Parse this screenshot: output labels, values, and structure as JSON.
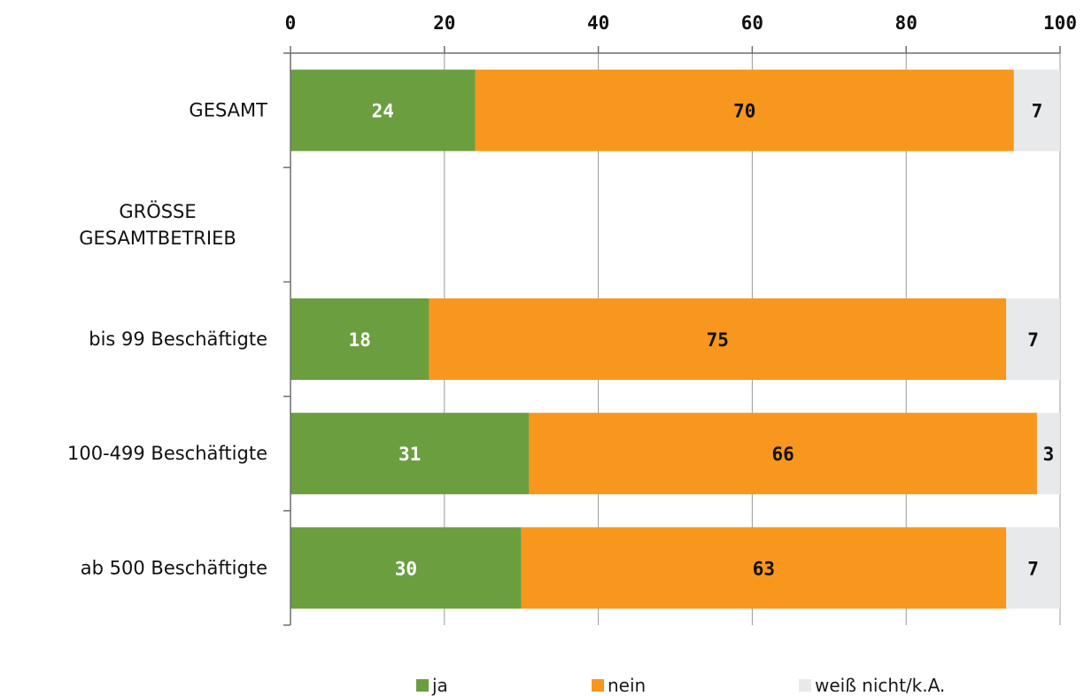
{
  "chart_data": {
    "type": "bar",
    "orientation": "horizontal",
    "stacked": true,
    "x_ticks": [
      "0",
      "20",
      "40",
      "60",
      "80",
      "100"
    ],
    "xlim": [
      0,
      100
    ],
    "grid": "vertical",
    "categories": [
      "GESAMT",
      "GRÖSSE GESAMTBETRIEB",
      "bis 99 Beschäftigte",
      "100-499 Beschäftigte",
      "ab 500 Beschäftigte"
    ],
    "series": [
      {
        "name": "ja",
        "color": "#6b9e3f",
        "label_color": "#ffffff",
        "values": [
          24,
          null,
          18,
          31,
          30
        ]
      },
      {
        "name": "nein",
        "color": "#f7971d",
        "label_color": "#111111",
        "values": [
          70,
          null,
          75,
          66,
          63
        ]
      },
      {
        "name": "weiß nicht/k.A.",
        "color": "#e8e9ea",
        "label_color": "#111111",
        "values": [
          7,
          null,
          7,
          3,
          7
        ]
      }
    ],
    "legend_position": "bottom"
  }
}
